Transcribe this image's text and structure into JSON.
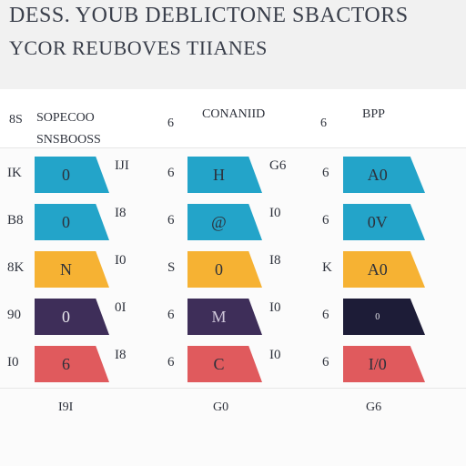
{
  "header": {
    "title_line1": "DESS. YOUB DEBLICTONE SBACTORS",
    "title_line2": "YCOR REUBOVES TIIANES"
  },
  "columns": [
    {
      "row_label": "8S",
      "name": "SOPECOO SNSBOOSS",
      "marker": "6"
    },
    {
      "row_label": "",
      "name": "CONANIID",
      "marker": "6"
    },
    {
      "row_label": "",
      "name": "BPP",
      "marker": ""
    }
  ],
  "colors": {
    "teal": "#23a4c9",
    "yellow": "#f6b233",
    "purple": "#3e2e59",
    "navy": "#1d1c37",
    "coral": "#e05a5d"
  },
  "rows": [
    {
      "label": "IK",
      "color": "teal",
      "cells": [
        {
          "tag": "0",
          "mid": "IJI"
        },
        {
          "tag": "H",
          "mid": "G6"
        },
        {
          "tag": "A0",
          "mid": ""
        }
      ],
      "markers": [
        "6",
        "6"
      ]
    },
    {
      "label": "B8",
      "color": "teal",
      "cells": [
        {
          "tag": "0",
          "mid": "I8"
        },
        {
          "tag": "@",
          "mid": "I0"
        },
        {
          "tag": "0V",
          "mid": ""
        }
      ],
      "markers": [
        "6",
        "6"
      ]
    },
    {
      "label": "8K",
      "color": "yellow",
      "cells": [
        {
          "tag": "N",
          "mid": "I0"
        },
        {
          "tag": "0",
          "mid": "I8"
        },
        {
          "tag": "A0",
          "mid": ""
        }
      ],
      "markers": [
        "S",
        "K"
      ]
    },
    {
      "label": "90",
      "color": "purple",
      "cells": [
        {
          "tag": "0",
          "mid": "0I"
        },
        {
          "tag": "M",
          "mid": "I0"
        },
        {
          "tag": "0",
          "mid": ""
        }
      ],
      "markers": [
        "6",
        "6"
      ]
    },
    {
      "label": "I0",
      "color": "coral",
      "cells": [
        {
          "tag": "6",
          "mid": "I8"
        },
        {
          "tag": "C",
          "mid": "I0"
        },
        {
          "tag": "I/0",
          "mid": ""
        }
      ],
      "markers": [
        "6",
        "6"
      ]
    }
  ],
  "footer": {
    "a": "I9I",
    "b": "G0",
    "c": "G6"
  }
}
